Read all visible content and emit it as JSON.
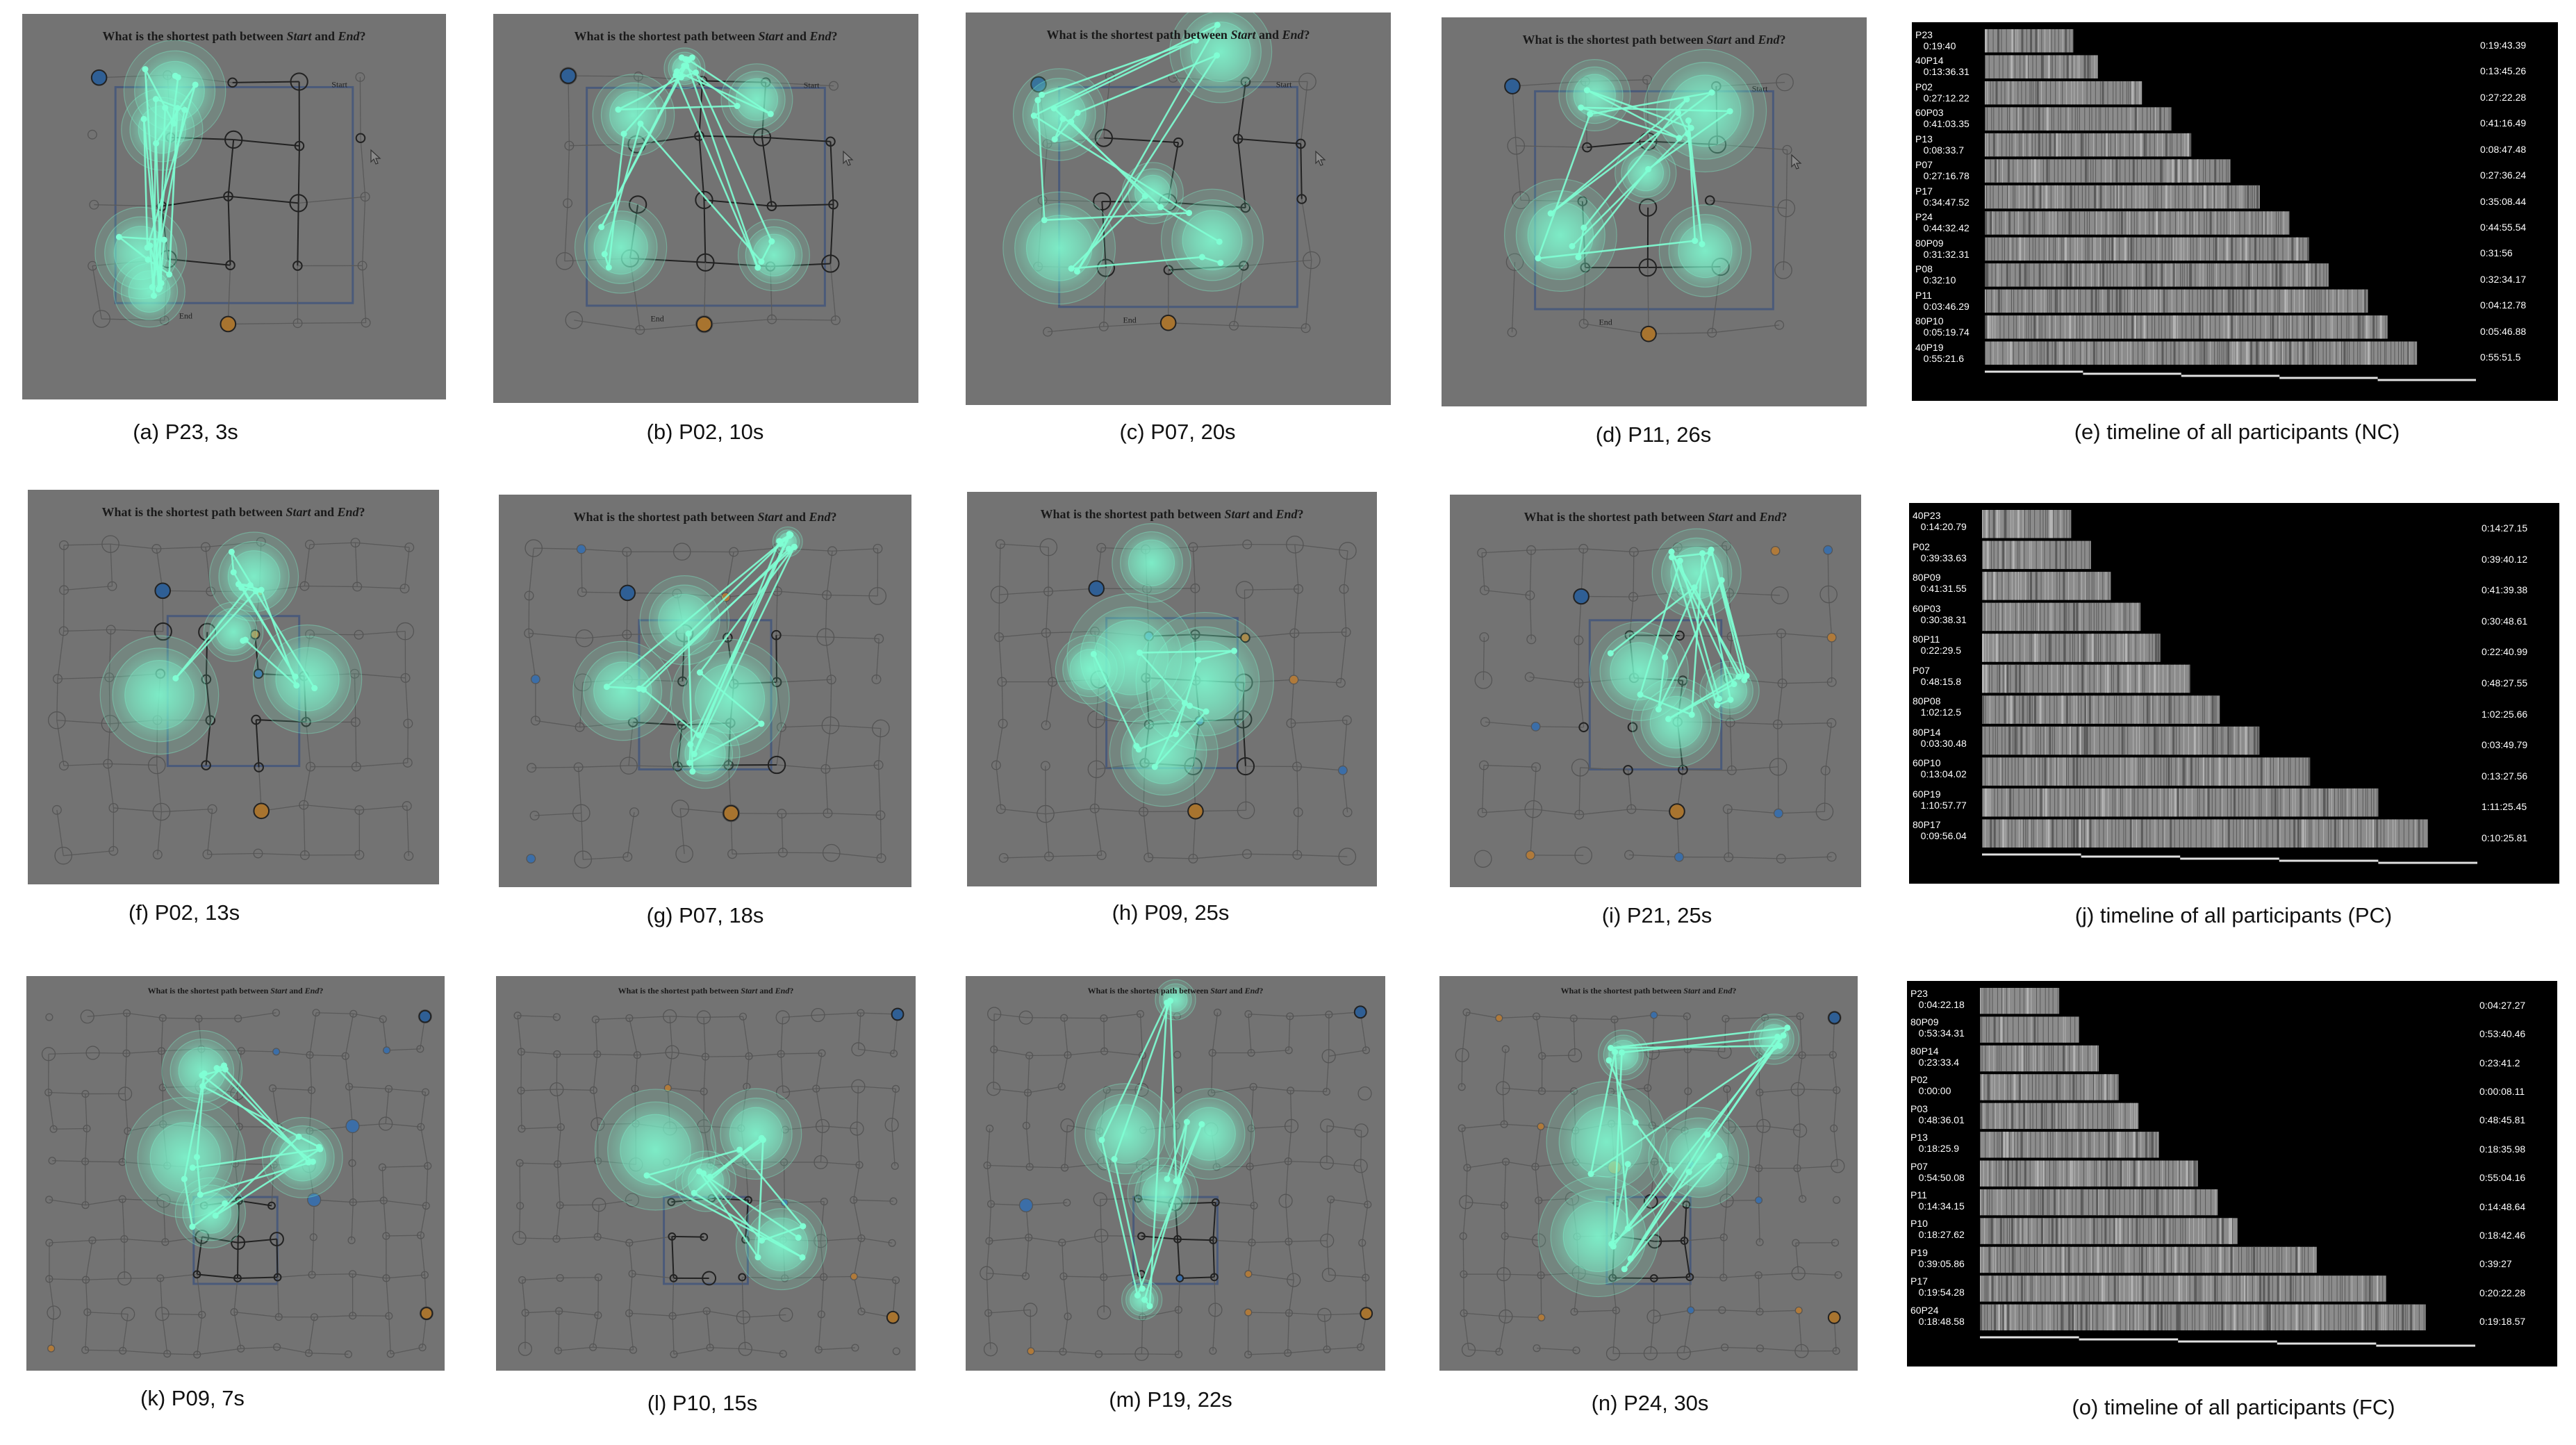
{
  "question": {
    "prefix": "What is the shortest path between ",
    "start": "Start",
    "mid": " and ",
    "end": "End",
    "suffix": "?"
  },
  "graph_labels": {
    "start": "Start",
    "end": "End"
  },
  "heatmap_color": "#7fffd4",
  "panel_bg": "#737373",
  "captions": {
    "a": "(a) P23, 3s",
    "b": "(b) P02, 10s",
    "c": "(c) P07, 20s",
    "d": "(d) P11, 26s",
    "e": "(e) timeline of all participants (NC)",
    "f": "(f) P02, 13s",
    "g": "(g) P07, 18s",
    "h": "(h) P09, 25s",
    "i": "(i) P21, 25s",
    "j": "(j) timeline of all participants (PC)",
    "k": "(k) P09, 7s",
    "l": "(l) P10, 15s",
    "m": "(m) P19, 22s",
    "n": "(n) P24, 30s",
    "o": "(o) timeline of all participants (FC)"
  },
  "timelines": {
    "e": {
      "rows": [
        {
          "label": "P23\n   0:19:40",
          "end": "0:19:43.39",
          "fill": 0.18
        },
        {
          "label": "40P14\n   0:13:36.31",
          "end": "0:13:45.26",
          "fill": 0.23
        },
        {
          "label": "P02\n   0:27:12.22",
          "end": "0:27:22.28",
          "fill": 0.32
        },
        {
          "label": "60P03\n   0:41:03.35",
          "end": "0:41:16.49",
          "fill": 0.38
        },
        {
          "label": "P13\n   0:08:33.7",
          "end": "0:08:47.48",
          "fill": 0.42
        },
        {
          "label": "P07\n   0:27:16.78",
          "end": "0:27:36.24",
          "fill": 0.5
        },
        {
          "label": "P17\n   0:34:47.52",
          "end": "0:35:08.44",
          "fill": 0.56
        },
        {
          "label": "P24\n   0:44:32.42",
          "end": "0:44:55.54",
          "fill": 0.62
        },
        {
          "label": "80P09\n   0:31:32.31",
          "end": "0:31:56",
          "fill": 0.66
        },
        {
          "label": "P08\n   0:32:10",
          "end": "0:32:34.17",
          "fill": 0.7
        },
        {
          "label": "P11\n   0:03:46.29",
          "end": "0:04:12.78",
          "fill": 0.78
        },
        {
          "label": "80P10\n   0:05:19.74",
          "end": "0:05:46.88",
          "fill": 0.82
        },
        {
          "label": "40P19\n   0:55:21.6",
          "end": "0:55:51.5",
          "fill": 0.88
        }
      ]
    },
    "j": {
      "rows": [
        {
          "label": "40P23\n   0:14:20.79",
          "end": "0:14:27.15",
          "fill": 0.18
        },
        {
          "label": "P02\n   0:39:33.63",
          "end": "0:39:40.12",
          "fill": 0.22
        },
        {
          "label": "80P09\n   0:41:31.55",
          "end": "0:41:39.38",
          "fill": 0.26
        },
        {
          "label": "60P03\n   0:30:38.31",
          "end": "0:30:48.61",
          "fill": 0.32
        },
        {
          "label": "80P11\n   0:22:29.5",
          "end": "0:22:40.99",
          "fill": 0.36
        },
        {
          "label": "P07\n   0:48:15.8",
          "end": "0:48:27.55",
          "fill": 0.42
        },
        {
          "label": "80P08\n   1:02:12.5",
          "end": "1:02:25.66",
          "fill": 0.48
        },
        {
          "label": "80P14\n   0:03:30.48",
          "end": "0:03:49.79",
          "fill": 0.56
        },
        {
          "label": "60P10\n   0:13:04.02",
          "end": "0:13:27.56",
          "fill": 0.66
        },
        {
          "label": "60P19\n   1:10:57.77",
          "end": "1:11:25.45",
          "fill": 0.8
        },
        {
          "label": "80P17\n   0:09:56.04",
          "end": "0:10:25.81",
          "fill": 0.9
        }
      ]
    },
    "o": {
      "rows": [
        {
          "label": "P23\n   0:04:22.18",
          "end": "0:04:27.27",
          "fill": 0.16
        },
        {
          "label": "80P09\n   0:53:34.31",
          "end": "0:53:40.46",
          "fill": 0.2
        },
        {
          "label": "80P14\n   0:23:33.4",
          "end": "0:23:41.2",
          "fill": 0.24
        },
        {
          "label": "P02\n   0:00:00",
          "end": "0:00:08.11",
          "fill": 0.28
        },
        {
          "label": "P03\n   0:48:36.01",
          "end": "0:48:45.81",
          "fill": 0.32
        },
        {
          "label": "P13\n   0:18:25.9",
          "end": "0:18:35.98",
          "fill": 0.36
        },
        {
          "label": "P07\n   0:54:50.08",
          "end": "0:55:04.16",
          "fill": 0.44
        },
        {
          "label": "P11\n   0:14:34.15",
          "end": "0:14:48.64",
          "fill": 0.48
        },
        {
          "label": "P10\n   0:18:27.62",
          "end": "0:18:42.46",
          "fill": 0.52
        },
        {
          "label": "P19\n   0:39:05.86",
          "end": "0:39:27",
          "fill": 0.68
        },
        {
          "label": "P17\n   0:19:54.28",
          "end": "0:20:22.28",
          "fill": 0.82
        },
        {
          "label": "60P24\n   0:18:48.58",
          "end": "0:19:18.57",
          "fill": 0.9
        }
      ]
    }
  }
}
